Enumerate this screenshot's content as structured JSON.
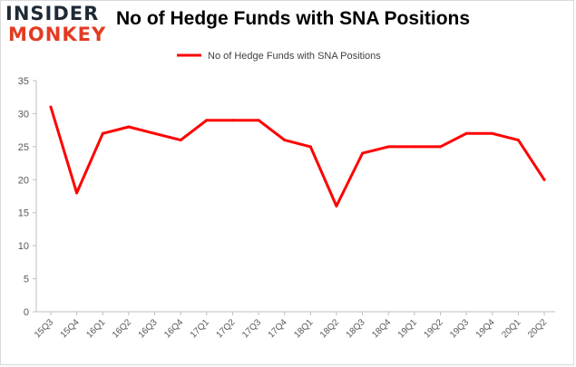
{
  "logo": {
    "line1": "INSIDER",
    "line2": "MONKEY"
  },
  "chart_data": {
    "type": "line",
    "title": "No of Hedge Funds with SNA Positions",
    "xlabel": "",
    "ylabel": "",
    "ylim": [
      0,
      35
    ],
    "yticks": [
      0,
      5,
      10,
      15,
      20,
      25,
      30,
      35
    ],
    "grid": false,
    "legend": "top-center",
    "categories": [
      "15Q3",
      "15Q4",
      "16Q1",
      "16Q2",
      "16Q3",
      "16Q4",
      "17Q1",
      "17Q2",
      "17Q3",
      "17Q4",
      "18Q1",
      "18Q2",
      "18Q3",
      "18Q4",
      "19Q1",
      "19Q2",
      "19Q3",
      "19Q4",
      "20Q1",
      "20Q2"
    ],
    "series": [
      {
        "name": "No of Hedge Funds with SNA Positions",
        "color": "#ff0000",
        "values": [
          31,
          18,
          27,
          28,
          27,
          26,
          29,
          29,
          29,
          26,
          25,
          16,
          24,
          25,
          25,
          25,
          27,
          27,
          26,
          20
        ]
      }
    ]
  }
}
